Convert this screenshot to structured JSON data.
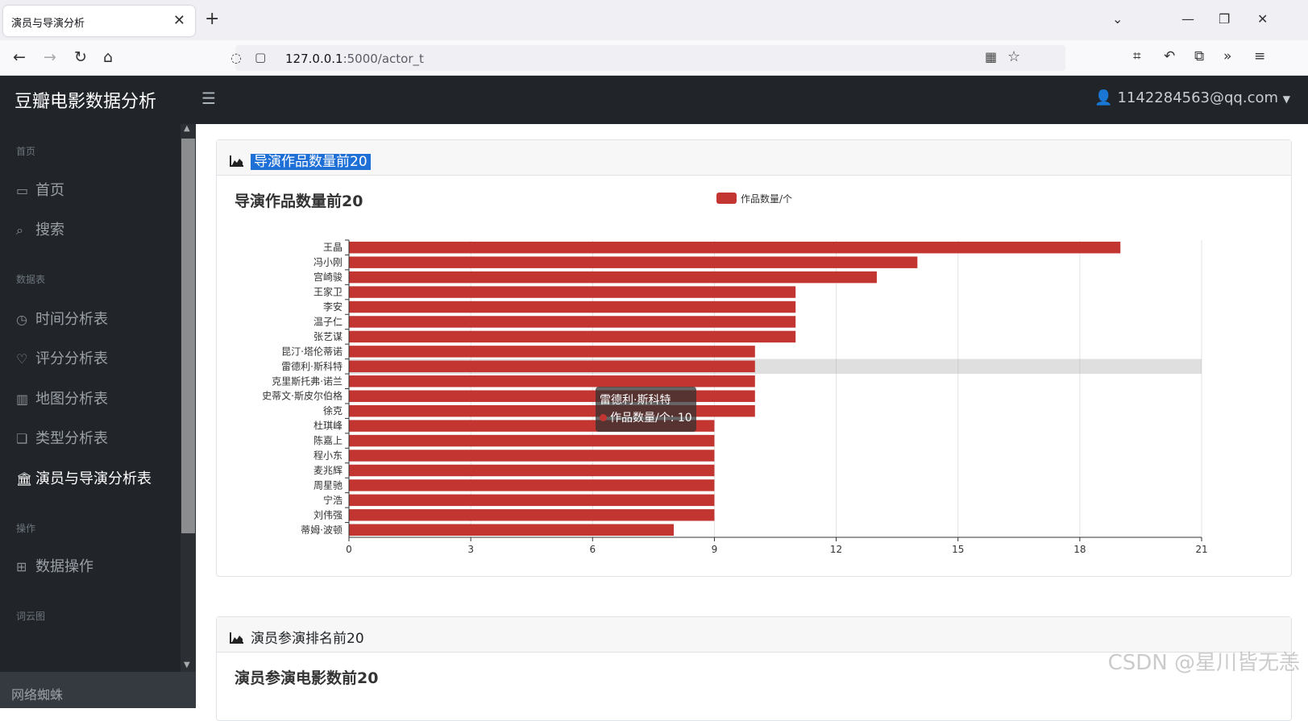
{
  "browser": {
    "tab_title": "演员与导演分析",
    "url_host": "127.0.0.1",
    "url_path": ":5000/actor_t"
  },
  "header": {
    "brand": "豆瓣电影数据分析",
    "user": "1142284563@qq.com"
  },
  "sidebar": {
    "sections": [
      {
        "heading": "首页"
      },
      {
        "heading": "数据表"
      },
      {
        "heading": "操作"
      },
      {
        "heading": "词云图"
      }
    ],
    "items": [
      {
        "label": "首页",
        "icon": "monitor-icon"
      },
      {
        "label": "搜索",
        "icon": "search-icon"
      },
      {
        "label": "时间分析表",
        "icon": "clock-icon"
      },
      {
        "label": "评分分析表",
        "icon": "heart-icon"
      },
      {
        "label": "地图分析表",
        "icon": "columns-icon"
      },
      {
        "label": "类型分析表",
        "icon": "copy-icon"
      },
      {
        "label": "演员与导演分析表",
        "icon": "bank-icon",
        "active": true
      },
      {
        "label": "数据操作",
        "icon": "table-icon"
      }
    ],
    "footer": "网络蜘蛛"
  },
  "cards": [
    {
      "header": "导演作品数量前20",
      "chart_title": "导演作品数量前20"
    },
    {
      "header": "演员参演排名前20",
      "chart_title": "演员参演电影数前20"
    }
  ],
  "tooltip": {
    "name": "雷德利·斯科特",
    "series_value": "作品数量/个: 10"
  },
  "watermark": "CSDN @星川皆无恙",
  "colors": {
    "bar": "#c23531",
    "header_bg": "#212529",
    "highlight": "#1e6fd6"
  },
  "chart_data": {
    "type": "bar",
    "orientation": "horizontal",
    "title": "导演作品数量前20",
    "categories": [
      "王晶",
      "冯小刚",
      "宫崎骏",
      "王家卫",
      "李安",
      "温子仁",
      "张艺谋",
      "昆汀·塔伦蒂诺",
      "雷德利·斯科特",
      "克里斯托弗·诺兰",
      "史蒂文·斯皮尔伯格",
      "徐克",
      "杜琪峰",
      "陈嘉上",
      "程小东",
      "麦兆辉",
      "周星驰",
      "宁浩",
      "刘伟强",
      "蒂姆·波顿"
    ],
    "series": [
      {
        "name": "作品数量/个",
        "values": [
          19,
          14,
          13,
          11,
          11,
          11,
          11,
          10,
          10,
          10,
          10,
          10,
          9,
          9,
          9,
          9,
          9,
          9,
          9,
          8
        ]
      }
    ],
    "xlim": [
      0,
      21
    ],
    "xticks": [
      0,
      3,
      6,
      9,
      12,
      15,
      18,
      21
    ],
    "highlighted_category": "雷德利·斯科特",
    "grid": true,
    "legend": "top-center"
  }
}
